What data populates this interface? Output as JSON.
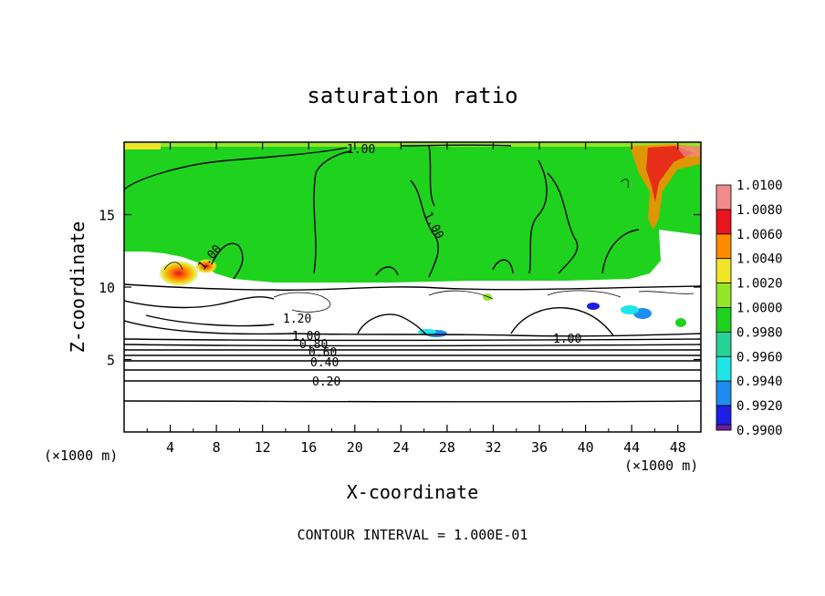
{
  "chart_data": {
    "type": "heatmap",
    "title": "saturation ratio",
    "xlabel": "X-coordinate",
    "ylabel": "Z-coordinate",
    "x_unit": "(×1000 m)",
    "z_unit": "(×1000 m)",
    "xlim": [
      0,
      50
    ],
    "ylim": [
      0,
      20
    ],
    "x_ticks": [
      4,
      8,
      12,
      16,
      20,
      24,
      28,
      32,
      36,
      40,
      44,
      48
    ],
    "x_tick_labels": [
      "4",
      "8",
      "12",
      "16",
      "20",
      "24",
      "28",
      "32",
      "36",
      "40",
      "44",
      "48"
    ],
    "y_ticks": [
      5,
      10,
      15
    ],
    "y_tick_labels": [
      "5",
      "10",
      "15"
    ],
    "contour_interval": "CONTOUR INTERVAL = 1.000E-01",
    "contour_labels": [
      "1.00",
      "1.00",
      "1.00",
      "1.00",
      "1.20",
      "1.00",
      "0.80",
      "0.60",
      "0.40",
      "0.20"
    ],
    "colorbar": {
      "levels": [
        "1.0100",
        "1.0080",
        "1.0060",
        "1.0040",
        "1.0020",
        "1.0000",
        "0.9980",
        "0.9960",
        "0.9940",
        "0.9920",
        "0.9900"
      ],
      "colors": [
        "#f08c8c",
        "#e8141e",
        "#ff8c00",
        "#f0e628",
        "#96e628",
        "#1ed21e",
        "#28d296",
        "#1ee6e6",
        "#1e8cf0",
        "#1e1ee6",
        "#6e1ea0"
      ]
    },
    "colors": {
      "background_field": "#1ed21e",
      "low_field": "#ffffff"
    }
  }
}
